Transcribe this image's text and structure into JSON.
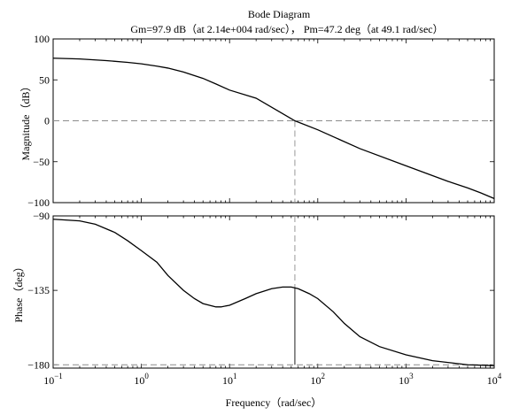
{
  "chart_data": {
    "type": "line",
    "title": "Bode Diagram",
    "subtitle": "Gm=97.9 dB（at 2.14e+004 rad/sec）， Pm=47.2 deg（at 49.1 rad/sec）",
    "xlabel": "Frequency（rad/sec）",
    "xscale": "log",
    "xlim": [
      0.1,
      10000
    ],
    "x_ticks": [
      0.1,
      1,
      10,
      100,
      1000,
      10000
    ],
    "x_tick_labels": [
      {
        "base": "10",
        "exp": "−1"
      },
      {
        "base": "10",
        "exp": "0"
      },
      {
        "base": "10",
        "exp": "1"
      },
      {
        "base": "10",
        "exp": "2"
      },
      {
        "base": "10",
        "exp": "3"
      },
      {
        "base": "10",
        "exp": "4"
      }
    ],
    "crossover_frequency": 55,
    "panels": [
      {
        "name": "magnitude",
        "ylabel": "Magnitude（dB）",
        "ylim": [
          -100,
          100
        ],
        "y_ticks": [
          100,
          50,
          0,
          -50,
          -100
        ],
        "y_tick_labels": [
          "100",
          "50",
          "0",
          "−50",
          "−100"
        ],
        "reference_line": 0,
        "series": [
          {
            "x": [
              0.1,
              0.2,
              0.4,
              0.7,
              1,
              1.5,
              2,
              3,
              5,
              7,
              10,
              20,
              55,
              100,
              300,
              1000,
              3000,
              5000,
              7000,
              10000
            ],
            "values": [
              76.5,
              75.5,
              73.5,
              71.4,
              69.6,
              66.8,
              64.4,
              59.6,
              51.8,
              45,
              37.5,
              27.6,
              0,
              -11,
              -34,
              -55,
              -74,
              -82,
              -88,
              -95
            ]
          }
        ]
      },
      {
        "name": "phase",
        "ylabel": "Phase（deg）",
        "ylim": [
          -182,
          -90
        ],
        "y_ticks": [
          -90,
          -135,
          -180
        ],
        "y_tick_labels": [
          "−90",
          "−135",
          "−180"
        ],
        "reference_line": -180,
        "series": [
          {
            "x": [
              0.1,
              0.2,
              0.3,
              0.5,
              0.7,
              1,
              1.5,
              2,
              3,
              4,
              5,
              7,
              8,
              10,
              15,
              20,
              30,
              40,
              50,
              60,
              80,
              100,
              150,
              200,
              300,
              500,
              1000,
              2000,
              5000,
              10000
            ],
            "values": [
              -92,
              -93,
              -95,
              -100,
              -105,
              -111,
              -118,
              -126,
              -135,
              -140,
              -143,
              -145,
              -145,
              -144,
              -140,
              -137,
              -134,
              -133,
              -133,
              -134,
              -137,
              -140,
              -148,
              -155,
              -163,
              -169,
              -174,
              -177.5,
              -180,
              -180.5
            ]
          }
        ]
      }
    ]
  }
}
